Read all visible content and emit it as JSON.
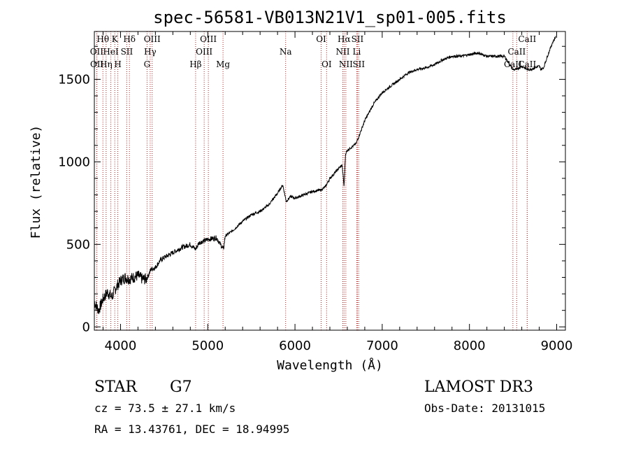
{
  "chart_data": {
    "type": "line",
    "title": "spec-56581-VB013N21V1_sp01-005.fits",
    "xlabel": "Wavelength (Å)",
    "ylabel": "Flux (relative)",
    "xlim": [
      3700,
      9100
    ],
    "ylim": [
      -20,
      1790
    ],
    "x_ticks": [
      4000,
      5000,
      6000,
      7000,
      8000,
      9000
    ],
    "y_ticks": [
      0,
      500,
      1000,
      1500
    ],
    "x_tick_labels": [
      "4000",
      "5000",
      "6000",
      "7000",
      "8000",
      "9000"
    ],
    "y_tick_labels": [
      "0",
      "500",
      "1000",
      "1500"
    ],
    "series": [
      {
        "name": "flux",
        "x": [
          3700,
          3750,
          3800,
          3850,
          3900,
          3950,
          4000,
          4050,
          4100,
          4150,
          4200,
          4250,
          4300,
          4350,
          4400,
          4450,
          4500,
          4600,
          4700,
          4800,
          4860,
          4900,
          5000,
          5100,
          5180,
          5200,
          5300,
          5400,
          5500,
          5600,
          5700,
          5800,
          5860,
          5900,
          5950,
          6000,
          6100,
          6200,
          6300,
          6350,
          6400,
          6500,
          6540,
          6563,
          6580,
          6600,
          6700,
          6800,
          6900,
          7000,
          7100,
          7200,
          7300,
          7400,
          7500,
          7600,
          7700,
          7800,
          7900,
          8000,
          8100,
          8200,
          8300,
          8400,
          8498,
          8542,
          8600,
          8662,
          8700,
          8800,
          8820,
          8850,
          8900,
          8950,
          8990
        ],
        "y": [
          150,
          100,
          170,
          210,
          180,
          240,
          280,
          300,
          290,
          300,
          310,
          290,
          290,
          350,
          360,
          400,
          420,
          450,
          480,
          500,
          470,
          510,
          530,
          540,
          470,
          550,
          590,
          640,
          680,
          700,
          740,
          810,
          860,
          760,
          790,
          780,
          800,
          820,
          830,
          850,
          900,
          960,
          980,
          850,
          1050,
          1070,
          1110,
          1250,
          1350,
          1420,
          1460,
          1500,
          1540,
          1560,
          1570,
          1590,
          1620,
          1640,
          1640,
          1650,
          1660,
          1640,
          1640,
          1640,
          1560,
          1560,
          1580,
          1560,
          1560,
          1580,
          1560,
          1570,
          1650,
          1720,
          1760
        ]
      }
    ],
    "line_markers": [
      {
        "label": "OII",
        "wavelength": 3727,
        "row": 1
      },
      {
        "label": "OII",
        "wavelength": 3729,
        "row": 2
      },
      {
        "label": "Hθ",
        "wavelength": 3798,
        "row": 0
      },
      {
        "label": "Hη",
        "wavelength": 3835,
        "row": 2
      },
      {
        "label": "HeI",
        "wavelength": 3889,
        "row": 1
      },
      {
        "label": "K",
        "wavelength": 3934,
        "row": 0
      },
      {
        "label": "H",
        "wavelength": 3969,
        "row": 2
      },
      {
        "label": "SII",
        "wavelength": 4072,
        "row": 1
      },
      {
        "label": "Hδ",
        "wavelength": 4102,
        "row": 0
      },
      {
        "label": "G",
        "wavelength": 4304,
        "row": 2
      },
      {
        "label": "Hγ",
        "wavelength": 4340,
        "row": 1
      },
      {
        "label": "OIII",
        "wavelength": 4363,
        "row": 0
      },
      {
        "label": "Hβ",
        "wavelength": 4861,
        "row": 2
      },
      {
        "label": "OIII",
        "wavelength": 4959,
        "row": 1
      },
      {
        "label": "OIII",
        "wavelength": 5007,
        "row": 0
      },
      {
        "label": "Mg",
        "wavelength": 5175,
        "row": 2
      },
      {
        "label": "Na",
        "wavelength": 5893,
        "row": 1
      },
      {
        "label": "OI",
        "wavelength": 6300,
        "row": 0
      },
      {
        "label": "OI",
        "wavelength": 6363,
        "row": 2
      },
      {
        "label": "NII",
        "wavelength": 6548,
        "row": 1
      },
      {
        "label": "Hα",
        "wavelength": 6563,
        "row": 0
      },
      {
        "label": "NII",
        "wavelength": 6583,
        "row": 2
      },
      {
        "label": "Li",
        "wavelength": 6708,
        "row": 1
      },
      {
        "label": "SII",
        "wavelength": 6716,
        "row": 0
      },
      {
        "label": "SII",
        "wavelength": 6731,
        "row": 2
      },
      {
        "label": "CaII",
        "wavelength": 8498,
        "row": 2
      },
      {
        "label": "CaII",
        "wavelength": 8542,
        "row": 1
      },
      {
        "label": "CaII",
        "wavelength": 8662,
        "row": 0
      },
      {
        "label": "CaII",
        "wavelength": 8662,
        "row": 2
      }
    ]
  },
  "footer": {
    "class_label": "STAR",
    "subclass": "G7",
    "survey": "LAMOST DR3",
    "cz": "cz = 73.5 ± 27.1 km/s",
    "obs_date": "Obs-Date: 20131015",
    "coords": "RA =  13.43761, DEC =  18.94995"
  }
}
